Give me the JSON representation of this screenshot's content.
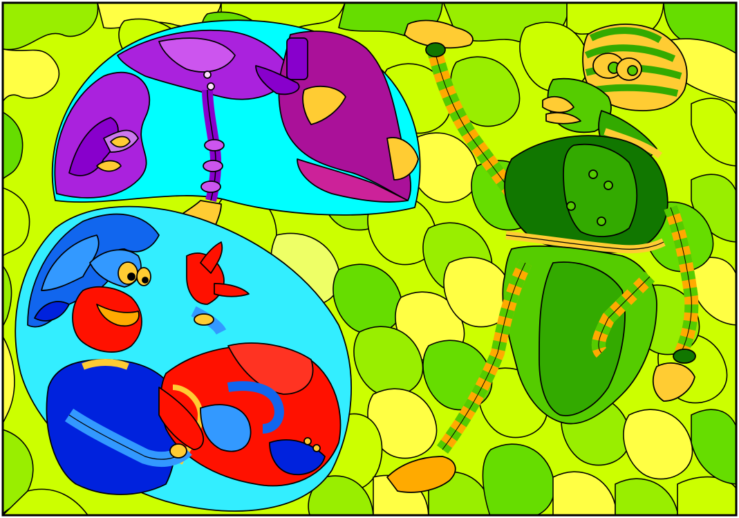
{
  "artwork": {
    "palette": {
      "background_light": "#ccff00",
      "background_mid": "#99ee00",
      "background_green": "#66dd00",
      "background_yellow": "#ffff44",
      "background_pale": "#eeff66",
      "bubble_cyan": "#00ffff",
      "bubble_light_cyan": "#33eeff",
      "purple_deep": "#8800cc",
      "purple_mid": "#aa22dd",
      "magenta": "#aa1199",
      "orange": "#ffaa00",
      "gold": "#ffcc33",
      "red": "#ff1100",
      "blue_deep": "#0022dd",
      "blue_mid": "#1166ee",
      "blue_light": "#3399ff",
      "green_dark": "#117700",
      "green_mid": "#33aa00",
      "green_bright": "#55cc00",
      "outline": "#000000"
    },
    "figures": [
      {
        "id": "purple-figure",
        "icon": "purple-creature"
      },
      {
        "id": "red-blue-figure",
        "icon": "red-blue-creature"
      },
      {
        "id": "green-figure",
        "icon": "green-striped-creature"
      }
    ]
  }
}
